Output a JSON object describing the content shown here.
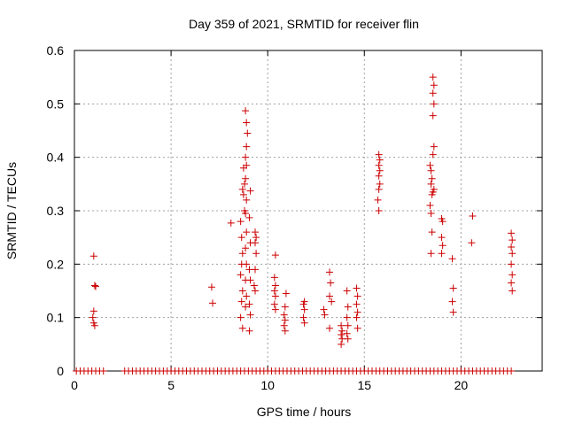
{
  "chart_data": {
    "type": "scatter",
    "title": "Day 359 of 2021, SRMTID for receiver flin",
    "xlabel": "GPS time / hours",
    "ylabel": "SRMTID / TECUs",
    "xlim": [
      0,
      24.2
    ],
    "ylim": [
      0,
      0.6
    ],
    "xticks": [
      0,
      5,
      10,
      15,
      20
    ],
    "xtick_labels": [
      "0",
      "5",
      "10",
      "15",
      "20"
    ],
    "yticks": [
      0,
      0.1,
      0.2,
      0.3,
      0.4,
      0.5,
      0.6
    ],
    "ytick_labels": [
      "0",
      "0.1",
      "0.2",
      "0.3",
      "0.4",
      "0.5",
      "0.6"
    ],
    "grid": true,
    "marker": "plus",
    "colors": {
      "series": "#cc0000",
      "grid": "#a0a0a0",
      "axis": "#000000"
    },
    "series": [
      {
        "name": "SRMTID",
        "points": [
          [
            1.0,
            0.215
          ],
          [
            1.05,
            0.16
          ],
          [
            1.1,
            0.158
          ],
          [
            1.0,
            0.112
          ],
          [
            0.95,
            0.1
          ],
          [
            1.0,
            0.09
          ],
          [
            1.05,
            0.085
          ],
          [
            7.1,
            0.157
          ],
          [
            7.15,
            0.127
          ],
          [
            8.1,
            0.277
          ],
          [
            8.6,
            0.28
          ],
          [
            8.65,
            0.25
          ],
          [
            8.7,
            0.22
          ],
          [
            8.65,
            0.2
          ],
          [
            8.6,
            0.18
          ],
          [
            8.7,
            0.15
          ],
          [
            8.65,
            0.13
          ],
          [
            8.6,
            0.1
          ],
          [
            8.7,
            0.08
          ],
          [
            8.75,
            0.38
          ],
          [
            8.8,
            0.35
          ],
          [
            8.7,
            0.34
          ],
          [
            8.75,
            0.33
          ],
          [
            8.8,
            0.3
          ],
          [
            8.85,
            0.487
          ],
          [
            8.9,
            0.465
          ],
          [
            8.95,
            0.445
          ],
          [
            8.9,
            0.42
          ],
          [
            8.85,
            0.4
          ],
          [
            8.9,
            0.385
          ],
          [
            8.85,
            0.36
          ],
          [
            8.9,
            0.32
          ],
          [
            8.85,
            0.295
          ],
          [
            8.9,
            0.26
          ],
          [
            8.85,
            0.23
          ],
          [
            8.9,
            0.2
          ],
          [
            8.85,
            0.17
          ],
          [
            8.9,
            0.14
          ],
          [
            8.85,
            0.12
          ],
          [
            9.1,
            0.337
          ],
          [
            9.05,
            0.287
          ],
          [
            9.1,
            0.24
          ],
          [
            9.05,
            0.19
          ],
          [
            9.1,
            0.17
          ],
          [
            9.05,
            0.125
          ],
          [
            9.1,
            0.105
          ],
          [
            9.05,
            0.075
          ],
          [
            9.35,
            0.26
          ],
          [
            9.4,
            0.25
          ],
          [
            9.35,
            0.24
          ],
          [
            9.4,
            0.22
          ],
          [
            9.35,
            0.19
          ],
          [
            9.3,
            0.16
          ],
          [
            9.35,
            0.15
          ],
          [
            10.4,
            0.217
          ],
          [
            10.35,
            0.175
          ],
          [
            10.4,
            0.16
          ],
          [
            10.35,
            0.15
          ],
          [
            10.4,
            0.14
          ],
          [
            10.35,
            0.125
          ],
          [
            10.4,
            0.115
          ],
          [
            10.95,
            0.145
          ],
          [
            10.9,
            0.12
          ],
          [
            10.85,
            0.105
          ],
          [
            10.9,
            0.095
          ],
          [
            10.85,
            0.085
          ],
          [
            10.9,
            0.075
          ],
          [
            11.9,
            0.13
          ],
          [
            11.85,
            0.125
          ],
          [
            11.9,
            0.115
          ],
          [
            11.85,
            0.1
          ],
          [
            11.9,
            0.09
          ],
          [
            12.9,
            0.115
          ],
          [
            12.95,
            0.105
          ],
          [
            13.2,
            0.185
          ],
          [
            13.25,
            0.165
          ],
          [
            13.2,
            0.14
          ],
          [
            13.3,
            0.13
          ],
          [
            13.2,
            0.08
          ],
          [
            13.8,
            0.085
          ],
          [
            13.85,
            0.075
          ],
          [
            13.8,
            0.068
          ],
          [
            13.85,
            0.06
          ],
          [
            13.8,
            0.05
          ],
          [
            14.1,
            0.15
          ],
          [
            14.15,
            0.12
          ],
          [
            14.1,
            0.1
          ],
          [
            14.15,
            0.085
          ],
          [
            14.1,
            0.07
          ],
          [
            14.15,
            0.06
          ],
          [
            14.6,
            0.155
          ],
          [
            14.65,
            0.14
          ],
          [
            14.6,
            0.125
          ],
          [
            14.65,
            0.11
          ],
          [
            14.6,
            0.1
          ],
          [
            14.65,
            0.08
          ],
          [
            15.75,
            0.405
          ],
          [
            15.8,
            0.395
          ],
          [
            15.75,
            0.385
          ],
          [
            15.8,
            0.375
          ],
          [
            15.75,
            0.365
          ],
          [
            15.8,
            0.35
          ],
          [
            15.75,
            0.34
          ],
          [
            15.7,
            0.32
          ],
          [
            15.75,
            0.3
          ],
          [
            18.4,
            0.385
          ],
          [
            18.45,
            0.375
          ],
          [
            18.5,
            0.36
          ],
          [
            18.45,
            0.35
          ],
          [
            18.5,
            0.33
          ],
          [
            18.4,
            0.31
          ],
          [
            18.45,
            0.295
          ],
          [
            18.5,
            0.26
          ],
          [
            18.45,
            0.22
          ],
          [
            18.55,
            0.55
          ],
          [
            18.6,
            0.535
          ],
          [
            18.55,
            0.52
          ],
          [
            18.6,
            0.5
          ],
          [
            18.55,
            0.478
          ],
          [
            18.6,
            0.42
          ],
          [
            18.55,
            0.405
          ],
          [
            18.6,
            0.34
          ],
          [
            18.55,
            0.335
          ],
          [
            19.0,
            0.285
          ],
          [
            19.05,
            0.28
          ],
          [
            19.0,
            0.25
          ],
          [
            19.05,
            0.235
          ],
          [
            19.0,
            0.22
          ],
          [
            19.55,
            0.21
          ],
          [
            19.6,
            0.155
          ],
          [
            19.55,
            0.13
          ],
          [
            19.6,
            0.11
          ],
          [
            20.6,
            0.29
          ],
          [
            20.55,
            0.24
          ],
          [
            22.6,
            0.258
          ],
          [
            22.65,
            0.245
          ],
          [
            22.6,
            0.232
          ],
          [
            22.65,
            0.22
          ],
          [
            22.6,
            0.2
          ],
          [
            22.65,
            0.18
          ],
          [
            22.6,
            0.165
          ],
          [
            22.65,
            0.15
          ]
        ],
        "zero_x": [
          0.1,
          0.3,
          0.5,
          0.7,
          0.9,
          1.1,
          1.3,
          1.5,
          2.6,
          2.8,
          3.0,
          3.2,
          3.4,
          3.6,
          3.8,
          4.0,
          4.2,
          4.4,
          4.6,
          4.8,
          5.0,
          5.2,
          5.4,
          5.6,
          5.8,
          6.0,
          6.2,
          6.4,
          6.6,
          6.8,
          7.0,
          7.2,
          7.4,
          7.6,
          7.8,
          8.0,
          8.2,
          8.4,
          8.6,
          8.8,
          9.0,
          9.2,
          9.4,
          9.6,
          9.8,
          10.0,
          10.2,
          10.4,
          10.6,
          10.8,
          11.0,
          11.2,
          11.4,
          11.6,
          11.8,
          12.0,
          12.2,
          12.4,
          12.6,
          12.8,
          13.0,
          13.2,
          13.4,
          13.6,
          13.8,
          14.0,
          14.2,
          14.4,
          14.6,
          14.8,
          15.0,
          15.2,
          15.4,
          15.6,
          15.8,
          16.0,
          16.2,
          16.4,
          16.6,
          16.8,
          17.0,
          17.2,
          17.4,
          17.6,
          17.8,
          18.0,
          18.2,
          18.4,
          18.6,
          18.8,
          19.0,
          19.2,
          19.4,
          19.6,
          19.8,
          20.0,
          20.2,
          20.4,
          20.6,
          20.8,
          21.0,
          21.2,
          21.4,
          21.6,
          21.8,
          22.0,
          22.2,
          22.4,
          22.6
        ]
      }
    ]
  }
}
